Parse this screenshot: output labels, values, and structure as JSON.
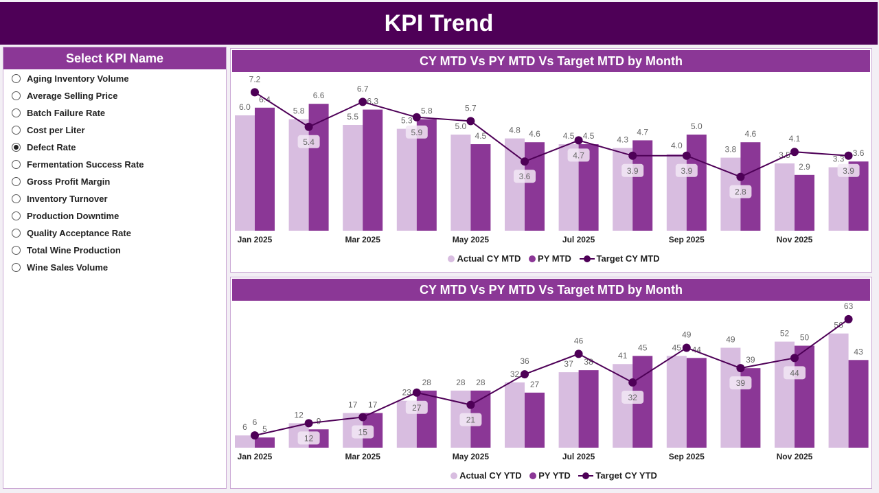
{
  "header": {
    "title": "KPI Trend"
  },
  "selector": {
    "title": "Select KPI Name",
    "selected": "Defect Rate",
    "items": [
      "Aging Inventory Volume",
      "Average Selling Price",
      "Batch Failure Rate",
      "Cost per Liter",
      "Defect Rate",
      "Fermentation Success Rate",
      "Gross Profit Margin",
      "Inventory Turnover",
      "Production Downtime",
      "Quality Acceptance Rate",
      "Total Wine Production",
      "Wine Sales Volume"
    ]
  },
  "colors": {
    "actual": "#d8bde0",
    "py": "#8b3796",
    "target": "#4e0057",
    "header": "#4e0057"
  },
  "chart_data": [
    {
      "type": "bar+line",
      "title": "CY MTD Vs PY MTD Vs Target MTD by Month",
      "categories": [
        "Jan 2025",
        "Feb 2025",
        "Mar 2025",
        "Apr 2025",
        "May 2025",
        "Jun 2025",
        "Jul 2025",
        "Aug 2025",
        "Sep 2025",
        "Oct 2025",
        "Nov 2025",
        "Dec 2025"
      ],
      "x_tick_labels": [
        "Jan 2025",
        "",
        "Mar 2025",
        "",
        "May 2025",
        "",
        "Jul 2025",
        "",
        "Sep 2025",
        "",
        "Nov 2025",
        ""
      ],
      "series": [
        {
          "name": "Actual CY MTD",
          "type": "bar",
          "values": [
            6.0,
            5.8,
            5.5,
            5.3,
            5.0,
            4.8,
            4.5,
            4.3,
            4.0,
            3.8,
            3.5,
            3.3
          ]
        },
        {
          "name": "PY MTD",
          "type": "bar",
          "values": [
            6.4,
            6.6,
            6.3,
            5.8,
            4.5,
            4.6,
            4.5,
            4.7,
            5.0,
            4.6,
            2.9,
            3.6
          ]
        },
        {
          "name": "Target CY MTD",
          "type": "line",
          "values": [
            7.2,
            5.4,
            6.7,
            5.9,
            5.7,
            3.6,
            4.7,
            3.9,
            3.9,
            2.8,
            4.1,
            3.9
          ]
        }
      ],
      "decimals": 1,
      "ylim": [
        0,
        7.5
      ],
      "legend": "bottom"
    },
    {
      "type": "bar+line",
      "title": "CY MTD Vs PY MTD Vs Target MTD by Month",
      "categories": [
        "Jan 2025",
        "Feb 2025",
        "Mar 2025",
        "Apr 2025",
        "May 2025",
        "Jun 2025",
        "Jul 2025",
        "Aug 2025",
        "Sep 2025",
        "Oct 2025",
        "Nov 2025",
        "Dec 2025"
      ],
      "x_tick_labels": [
        "Jan 2025",
        "",
        "Mar 2025",
        "",
        "May 2025",
        "",
        "Jul 2025",
        "",
        "Sep 2025",
        "",
        "Nov 2025",
        ""
      ],
      "series": [
        {
          "name": "Actual CY YTD",
          "type": "bar",
          "values": [
            6,
            12,
            17,
            23,
            28,
            32,
            37,
            41,
            45,
            49,
            52,
            56
          ]
        },
        {
          "name": "PY YTD",
          "type": "bar",
          "values": [
            5,
            9,
            17,
            28,
            28,
            27,
            38,
            45,
            44,
            39,
            50,
            43
          ]
        },
        {
          "name": "Target CY YTD",
          "type": "line",
          "values": [
            6,
            12,
            15,
            27,
            21,
            36,
            46,
            32,
            49,
            39,
            44,
            63
          ]
        }
      ],
      "decimals": 0,
      "ylim": [
        0,
        65
      ],
      "legend": "bottom"
    }
  ]
}
